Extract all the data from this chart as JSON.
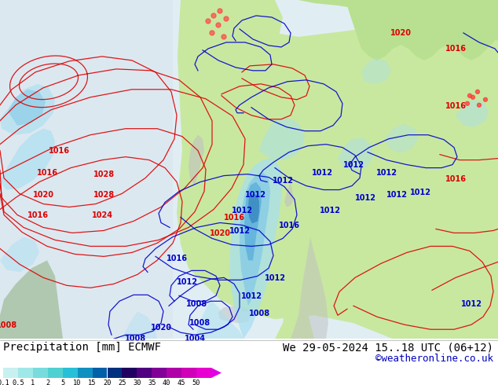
{
  "title_label": "Precipitation [mm] ECMWF",
  "date_label": "We 29-05-2024 15..18 UTC (06+12)",
  "credit_label": "©weatheronline.co.uk",
  "colorbar_values": [
    "0.1",
    "0.5",
    "1",
    "2",
    "5",
    "10",
    "15",
    "20",
    "25",
    "30",
    "35",
    "40",
    "45",
    "50"
  ],
  "colorbar_colors": [
    "#c8f0f0",
    "#a0e8e8",
    "#78dcdc",
    "#50d0d0",
    "#28c0d8",
    "#1090c0",
    "#0060a8",
    "#003080",
    "#200060",
    "#500080",
    "#800098",
    "#b000a8",
    "#d000b8",
    "#e800d0"
  ],
  "cb_arrow_color": "#e000e8",
  "map_ocean_color": "#e0eef4",
  "map_land_green": "#c8e8a0",
  "map_land_green2": "#b8e090",
  "map_gray": "#c0c0c0",
  "map_sea_light": "#d8ecf4",
  "precip_light": "#a8dff0",
  "precip_mid": "#80c8e8",
  "precip_dark": "#50a8d8",
  "precip_darkest": "#2878b8",
  "isobar_red": "#dd0000",
  "isobar_blue": "#0000cc",
  "label_fontsize": 10,
  "date_fontsize": 10,
  "credit_fontsize": 9
}
